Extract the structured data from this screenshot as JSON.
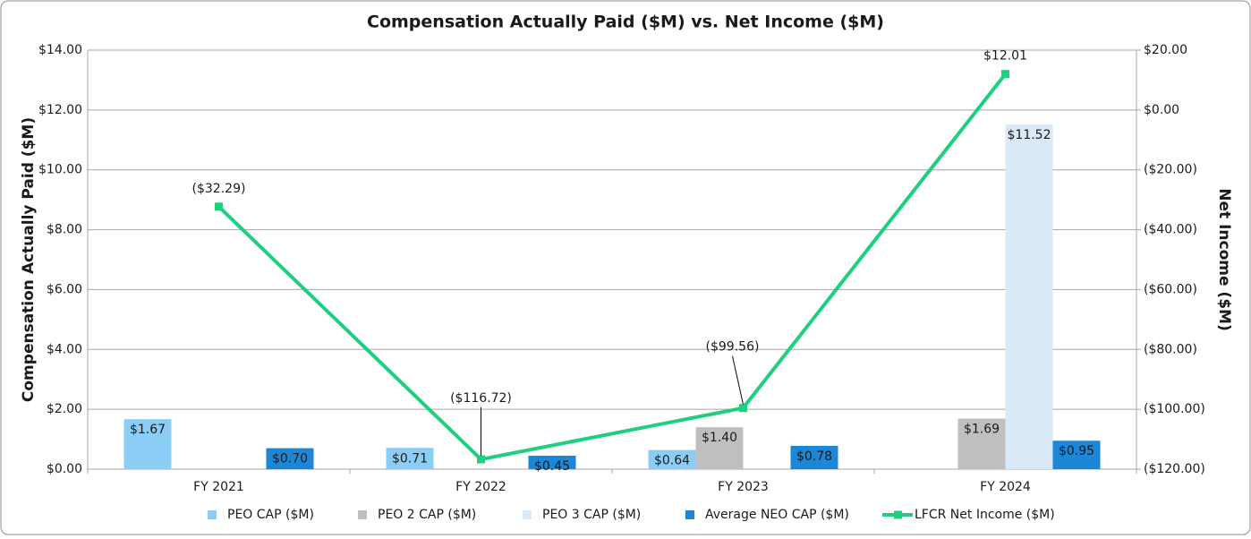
{
  "chart_data": {
    "type": "bar",
    "title": "Compensation Actually Paid ($M) vs. Net Income ($M)",
    "y_label": "Compensation Actually Paid ($M)",
    "y2_label": "Net Income ($M)",
    "categories": [
      "FY 2021",
      "FY 2022",
      "FY 2023",
      "FY 2024"
    ],
    "series": [
      {
        "name": "PEO CAP ($M)",
        "type": "bar",
        "color": "#8ccdf6",
        "values": [
          1.67,
          0.71,
          0.64,
          null
        ],
        "value_labels": [
          "$1.67",
          "$0.71",
          "$0.64",
          null
        ]
      },
      {
        "name": "PEO 2 CAP ($M)",
        "type": "bar",
        "color": "#bfbfbf",
        "values": [
          null,
          null,
          1.4,
          1.69
        ],
        "value_labels": [
          null,
          null,
          "$1.40",
          "$1.69"
        ]
      },
      {
        "name": "PEO 3 CAP ($M)",
        "type": "bar",
        "color": "#dae9f7",
        "values": [
          null,
          null,
          null,
          11.52
        ],
        "value_labels": [
          null,
          null,
          null,
          "$11.52"
        ]
      },
      {
        "name": "Average NEO CAP ($M)",
        "type": "bar",
        "color": "#1b87d6",
        "values": [
          0.7,
          0.45,
          0.78,
          0.95
        ],
        "value_labels": [
          "$0.70",
          "$0.45",
          "$0.78",
          "$0.95"
        ]
      },
      {
        "name": "LFCR Net Income ($M)",
        "type": "line",
        "axis": "y2",
        "color": "#1ecf7f",
        "values": [
          -32.29,
          -116.72,
          -99.56,
          12.01
        ],
        "value_labels": [
          "($32.29)",
          "($116.72)",
          "($99.56)",
          "$12.01"
        ]
      }
    ],
    "ylim": [
      0,
      14
    ],
    "yticks": [
      {
        "value": 0,
        "label": "$0.00"
      },
      {
        "value": 2,
        "label": "$2.00"
      },
      {
        "value": 4,
        "label": "$4.00"
      },
      {
        "value": 6,
        "label": "$6.00"
      },
      {
        "value": 8,
        "label": "$8.00"
      },
      {
        "value": 10,
        "label": "$10.00"
      },
      {
        "value": 12,
        "label": "$12.00"
      },
      {
        "value": 14,
        "label": "$14.00"
      }
    ],
    "y2lim": [
      -120,
      20
    ],
    "y2ticks": [
      {
        "value": -120,
        "label": "($120.00)"
      },
      {
        "value": -100,
        "label": "($100.00)"
      },
      {
        "value": -80,
        "label": "($80.00)"
      },
      {
        "value": -60,
        "label": "($60.00)"
      },
      {
        "value": -40,
        "label": "($40.00)"
      },
      {
        "value": -20,
        "label": "($20.00)"
      },
      {
        "value": 0,
        "label": "$0.00"
      },
      {
        "value": 20,
        "label": "$20.00"
      }
    ],
    "grid": true,
    "legend": "bottom"
  }
}
